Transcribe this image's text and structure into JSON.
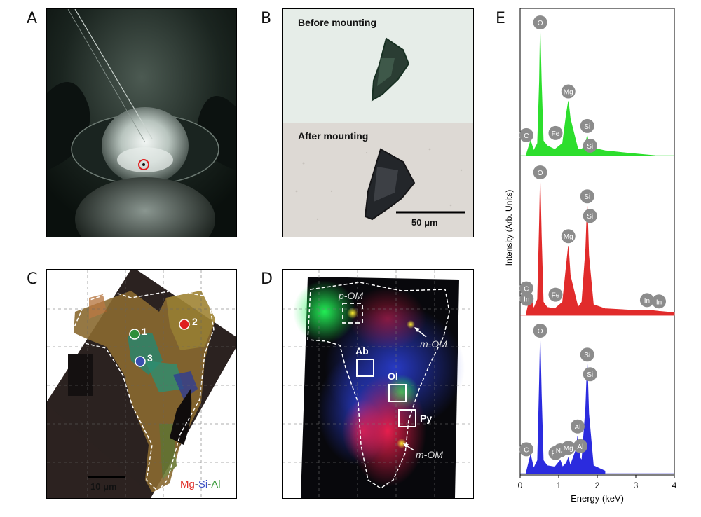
{
  "figure": {
    "panel_labels": [
      "A",
      "B",
      "C",
      "D",
      "E"
    ],
    "panel_b": {
      "before_label": "Before mounting",
      "after_label": "After mounting",
      "scale_bar": "50 μm"
    },
    "panel_c": {
      "points": [
        "1",
        "2",
        "3"
      ],
      "point_colors": [
        "#2e8f3a",
        "#e02020",
        "#3a4fb0"
      ],
      "scale_bar": "10 μm",
      "legend": [
        {
          "text": "Mg",
          "color": "#e0302a"
        },
        {
          "text": "-",
          "color": "#333333"
        },
        {
          "text": "Si",
          "color": "#3b4fc6"
        },
        {
          "text": "-",
          "color": "#333333"
        },
        {
          "text": "Al",
          "color": "#3a9a3a"
        }
      ]
    },
    "panel_d": {
      "labels": {
        "p_om": "p-OM",
        "m_om_1": "m-OM",
        "m_om_2": "m-OM",
        "ab": "Ab",
        "ol": "Ol",
        "py": "Py"
      }
    }
  },
  "chart_data": {
    "type": "line",
    "title": "",
    "xlabel": "Energy (keV)",
    "ylabel": "Intensity (Arb. Units)",
    "xlim": [
      0,
      4
    ],
    "xticks": [
      "0",
      "1",
      "2",
      "3",
      "4"
    ],
    "series": [
      {
        "color": "#22dd22",
        "x": [
          0.15,
          0.27,
          0.35,
          0.45,
          0.5,
          0.52,
          0.55,
          0.6,
          0.7,
          0.9,
          1.1,
          1.2,
          1.25,
          1.3,
          1.5,
          1.6,
          1.7,
          1.74,
          1.78,
          1.9,
          2.2,
          2.8,
          3.5
        ],
        "y": [
          0.0,
          0.12,
          0.04,
          0.1,
          0.6,
          1.0,
          0.6,
          0.12,
          0.08,
          0.05,
          0.1,
          0.34,
          0.44,
          0.3,
          0.05,
          0.05,
          0.1,
          0.16,
          0.1,
          0.06,
          0.04,
          0.02,
          0.0
        ],
        "peaks": [
          {
            "label": "O",
            "x": 0.52
          },
          {
            "label": "C",
            "x": 0.27
          },
          {
            "label": "Fe",
            "x": 0.7
          },
          {
            "label": "Mg",
            "x": 1.25
          },
          {
            "label": "Si",
            "x": 1.74
          },
          {
            "label": "Si",
            "x": 1.74
          }
        ]
      },
      {
        "color": "#e02020",
        "x": [
          0.15,
          0.27,
          0.35,
          0.45,
          0.5,
          0.52,
          0.55,
          0.6,
          0.7,
          0.9,
          1.1,
          1.2,
          1.25,
          1.3,
          1.5,
          1.6,
          1.7,
          1.74,
          1.78,
          1.9,
          2.2,
          2.8,
          3.3,
          3.6,
          4.0
        ],
        "y": [
          0.0,
          0.16,
          0.05,
          0.12,
          0.7,
          1.0,
          0.6,
          0.1,
          0.06,
          0.05,
          0.1,
          0.38,
          0.52,
          0.3,
          0.06,
          0.1,
          0.5,
          0.82,
          0.45,
          0.08,
          0.05,
          0.04,
          0.04,
          0.03,
          0.02
        ],
        "peaks": [
          {
            "label": "O",
            "x": 0.52
          },
          {
            "label": "C",
            "x": 0.27
          },
          {
            "label": "In",
            "x": 0.35
          },
          {
            "label": "Fe",
            "x": 0.7
          },
          {
            "label": "Mg",
            "x": 1.25
          },
          {
            "label": "Si",
            "x": 1.74
          },
          {
            "label": "Si",
            "x": 1.74
          },
          {
            "label": "In",
            "x": 3.29
          },
          {
            "label": "In",
            "x": 3.6
          }
        ]
      },
      {
        "color": "#2020dd",
        "x": [
          0.15,
          0.27,
          0.35,
          0.45,
          0.5,
          0.52,
          0.55,
          0.6,
          0.7,
          0.9,
          1.04,
          1.1,
          1.2,
          1.25,
          1.3,
          1.45,
          1.49,
          1.55,
          1.6,
          1.7,
          1.74,
          1.78,
          1.9,
          2.2
        ],
        "y": [
          0.0,
          0.14,
          0.04,
          0.1,
          0.7,
          1.0,
          0.6,
          0.1,
          0.06,
          0.05,
          0.1,
          0.05,
          0.08,
          0.12,
          0.06,
          0.18,
          0.28,
          0.12,
          0.1,
          0.5,
          0.82,
          0.45,
          0.06,
          0.02
        ],
        "peaks": [
          {
            "label": "O",
            "x": 0.52
          },
          {
            "label": "C",
            "x": 0.27
          },
          {
            "label": "Fe",
            "x": 0.7
          },
          {
            "label": "Na",
            "x": 1.04
          },
          {
            "label": "Mg",
            "x": 1.25
          },
          {
            "label": "Al",
            "x": 1.49
          },
          {
            "label": "Al",
            "x": 1.49
          },
          {
            "label": "Si",
            "x": 1.74
          },
          {
            "label": "Si",
            "x": 1.74
          }
        ]
      }
    ]
  }
}
